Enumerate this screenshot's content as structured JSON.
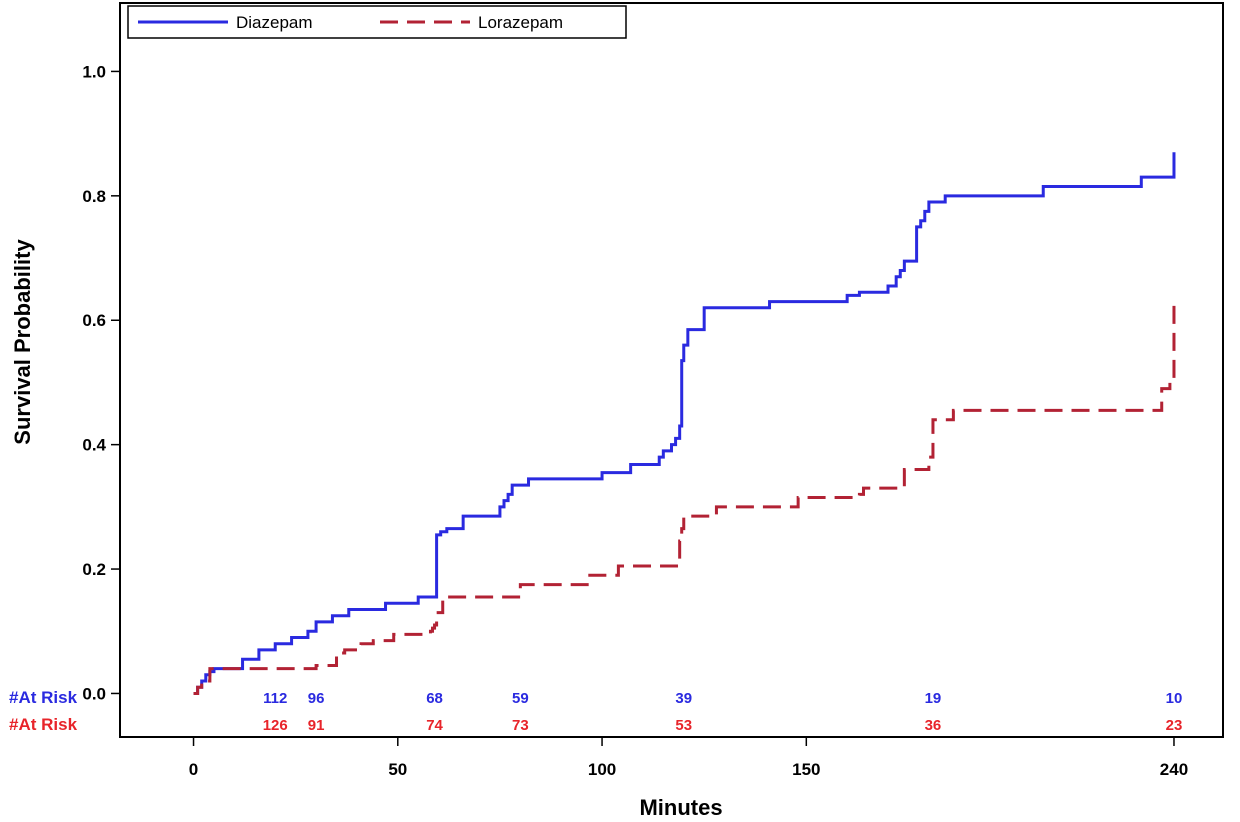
{
  "chart_data": {
    "type": "line",
    "step": true,
    "xlabel": "Minutes",
    "ylabel": "Survival Probability",
    "xlim": [
      -18,
      252
    ],
    "ylim": [
      -0.07,
      1.11
    ],
    "x_ticks": [
      {
        "value": 0,
        "label": "0"
      },
      {
        "value": 50,
        "label": "50"
      },
      {
        "value": 100,
        "label": "100"
      },
      {
        "value": 150,
        "label": "150"
      },
      {
        "value": 240,
        "label": "240"
      }
    ],
    "y_ticks": [
      {
        "value": 0.0,
        "label": "0.0"
      },
      {
        "value": 0.2,
        "label": "0.2"
      },
      {
        "value": 0.4,
        "label": "0.4"
      },
      {
        "value": 0.6,
        "label": "0.6"
      },
      {
        "value": 0.8,
        "label": "0.8"
      },
      {
        "value": 1.0,
        "label": "1.0"
      }
    ],
    "legend_position": "top-left",
    "series": [
      {
        "name": "Diazepam",
        "color": "#2a2ae0",
        "dash": "solid",
        "x": [
          0,
          1,
          2,
          3,
          4,
          5,
          12,
          16,
          20,
          24,
          28,
          30,
          34,
          38,
          47,
          55,
          59.5,
          60.5,
          62,
          66,
          75,
          76,
          77,
          78,
          82,
          100,
          107,
          114,
          115,
          117,
          118,
          119,
          119.5,
          120,
          121,
          125,
          141,
          160,
          163,
          170,
          172,
          173,
          174,
          177,
          178,
          179,
          180,
          184,
          208,
          232,
          240,
          240
        ],
        "y": [
          0.0,
          0.01,
          0.02,
          0.03,
          0.035,
          0.04,
          0.055,
          0.07,
          0.08,
          0.09,
          0.1,
          0.115,
          0.125,
          0.135,
          0.145,
          0.155,
          0.255,
          0.26,
          0.265,
          0.285,
          0.3,
          0.31,
          0.32,
          0.335,
          0.345,
          0.355,
          0.368,
          0.38,
          0.39,
          0.4,
          0.41,
          0.43,
          0.535,
          0.56,
          0.585,
          0.62,
          0.63,
          0.64,
          0.645,
          0.655,
          0.67,
          0.68,
          0.695,
          0.75,
          0.76,
          0.775,
          0.79,
          0.8,
          0.815,
          0.83,
          0.83,
          0.87
        ]
      },
      {
        "name": "Lorazepam",
        "color": "#b22234",
        "dash": "dashed",
        "x": [
          0,
          1,
          2,
          4,
          5,
          30,
          35,
          36,
          37,
          41,
          44,
          49,
          58,
          58.5,
          59,
          59.5,
          61,
          80,
          97,
          104,
          119,
          119.5,
          120,
          128,
          148,
          163,
          164,
          174,
          180,
          181,
          186,
          231,
          237,
          239,
          240,
          240
        ],
        "y": [
          0.0,
          0.01,
          0.02,
          0.04,
          0.04,
          0.045,
          0.06,
          0.065,
          0.07,
          0.08,
          0.085,
          0.095,
          0.1,
          0.105,
          0.11,
          0.13,
          0.155,
          0.175,
          0.19,
          0.205,
          0.245,
          0.265,
          0.285,
          0.3,
          0.315,
          0.32,
          0.33,
          0.36,
          0.38,
          0.44,
          0.455,
          0.455,
          0.49,
          0.5,
          0.51,
          0.635
        ]
      }
    ],
    "at_risk": {
      "label": "#At Risk",
      "rows": [
        {
          "series": "Diazepam",
          "color": "#2a2ae0",
          "points": [
            {
              "x": 20,
              "value": "112"
            },
            {
              "x": 30,
              "value": "96"
            },
            {
              "x": 59,
              "value": "68"
            },
            {
              "x": 80,
              "value": "59"
            },
            {
              "x": 120,
              "value": "39"
            },
            {
              "x": 181,
              "value": "19"
            },
            {
              "x": 240,
              "value": "10"
            }
          ]
        },
        {
          "series": "Lorazepam",
          "color": "#e8242a",
          "points": [
            {
              "x": 20,
              "value": "126"
            },
            {
              "x": 30,
              "value": "91"
            },
            {
              "x": 59,
              "value": "74"
            },
            {
              "x": 80,
              "value": "73"
            },
            {
              "x": 120,
              "value": "53"
            },
            {
              "x": 181,
              "value": "36"
            },
            {
              "x": 240,
              "value": "23"
            }
          ]
        }
      ]
    }
  }
}
